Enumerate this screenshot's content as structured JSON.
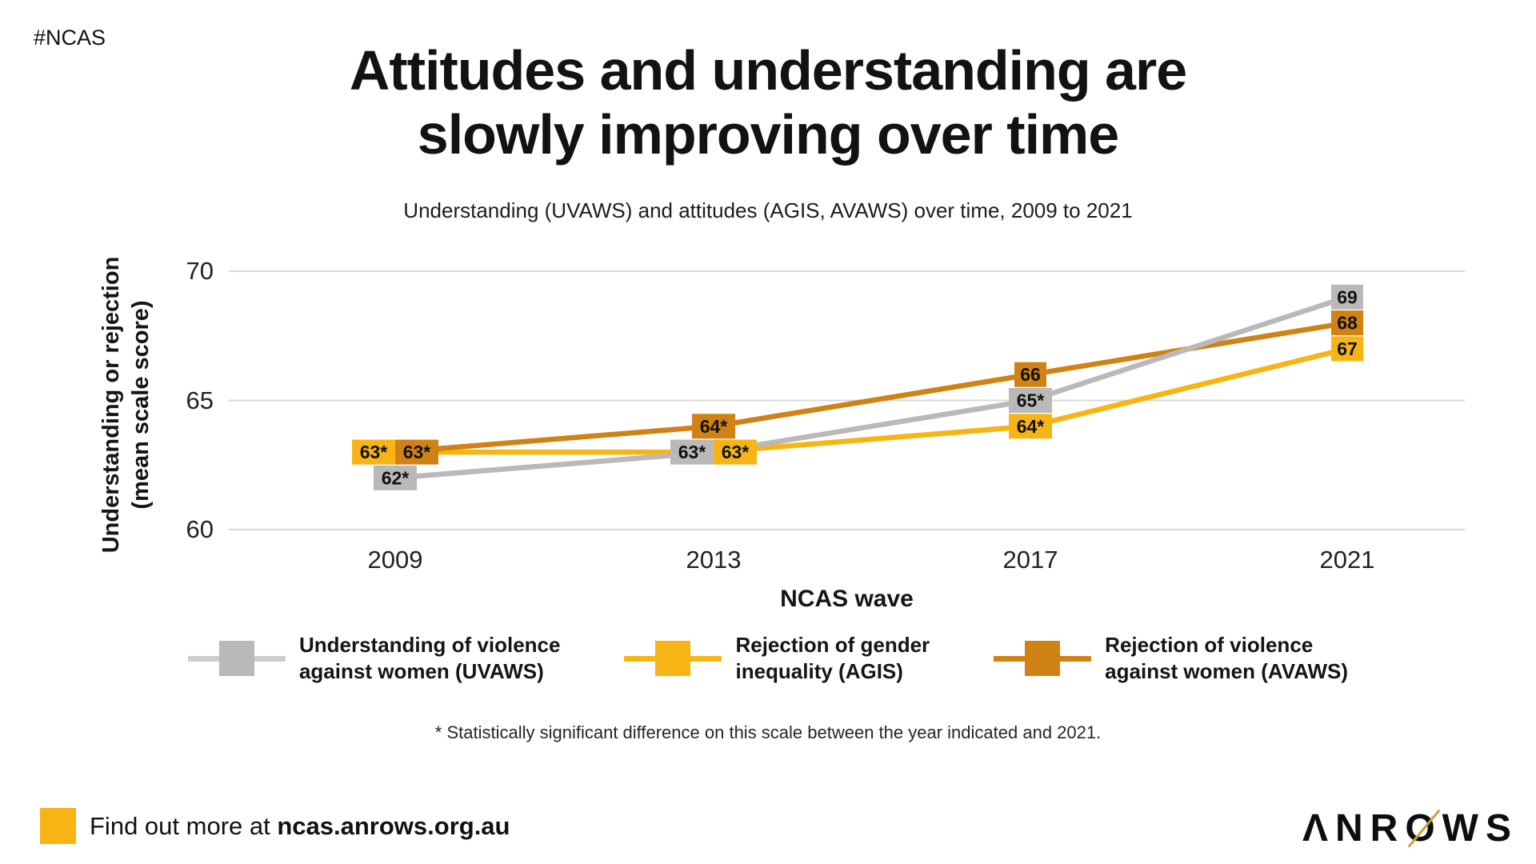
{
  "page": {
    "hashtag": "#NCAS",
    "title_line1": "Attitudes and understanding are",
    "title_line2": "slowly improving over time",
    "subtitle": "Understanding (UVAWS) and attitudes (AGIS, AVAWS) over time, 2009 to 2021"
  },
  "chart_data": {
    "type": "line",
    "title": "Attitudes and understanding are slowly improving over time",
    "subtitle": "Understanding (UVAWS) and attitudes (AGIS, AVAWS) over time, 2009 to 2021",
    "categories": [
      "2009",
      "2013",
      "2017",
      "2021"
    ],
    "series": [
      {
        "name": "Understanding of violence against women (UVAWS)",
        "color": "#b9b9b9",
        "values": [
          62,
          63,
          65,
          69
        ],
        "point_labels": [
          "62*",
          "63*",
          "65*",
          "69"
        ]
      },
      {
        "name": "Rejection of gender inequality (AGIS)",
        "color": "#f7b515",
        "values": [
          63,
          63,
          64,
          67
        ],
        "point_labels": [
          "63*",
          "63*",
          "64*",
          "67"
        ]
      },
      {
        "name": "Rejection of violence against women (AVAWS)",
        "color": "#d08214",
        "values": [
          63,
          64,
          66,
          68
        ],
        "point_labels": [
          "63*",
          "64*",
          "66",
          "68"
        ]
      }
    ],
    "xlabel": "NCAS wave",
    "ylabel_line1": "Understanding or rejection",
    "ylabel_line2": "(mean scale score)",
    "yticks": [
      60,
      65,
      70
    ],
    "ylim": [
      60,
      70
    ],
    "grid": true,
    "gridline_color": "#d9d9d9",
    "legend_position": "bottom"
  },
  "legend": {
    "items": [
      {
        "label_line1": "Understanding of violence",
        "label_line2": "against women (UVAWS)",
        "box_color": "#b9b9b9",
        "line_color": "#cdcdcd"
      },
      {
        "label_line1": "Rejection of gender",
        "label_line2": "inequality (AGIS)",
        "box_color": "#f7b515",
        "line_color": "#f7b515"
      },
      {
        "label_line1": "Rejection of violence",
        "label_line2": "against women (AVAWS)",
        "box_color": "#d08214",
        "line_color": "#d08214"
      }
    ]
  },
  "footnote": "* Statistically significant difference on this scale between the year indicated and 2021.",
  "footer": {
    "square_color": "#f7b515",
    "more_prefix": "Find out more at ",
    "more_url": "ncas.anrows.org.au",
    "logo_part1": "ΛNR",
    "logo_o": "O",
    "logo_part2": "WS"
  }
}
